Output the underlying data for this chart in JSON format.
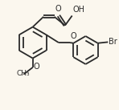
{
  "bg_color": "#fbf7ee",
  "line_color": "#2a2a2a",
  "line_width": 1.3,
  "font_size": 7.0,
  "figsize": [
    1.48,
    1.37
  ],
  "dpi": 100,
  "xlim": [
    0.0,
    1.0
  ],
  "ylim": [
    0.0,
    1.0
  ]
}
